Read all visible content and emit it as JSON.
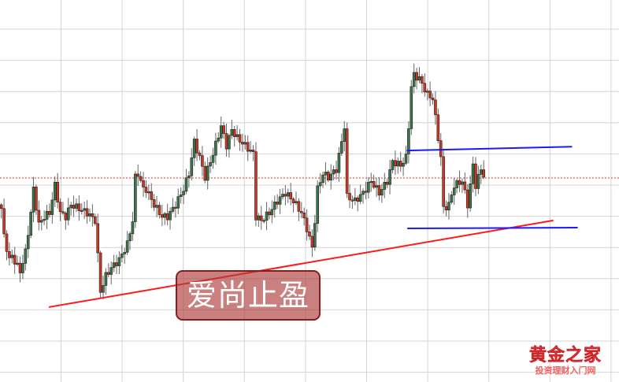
{
  "chart_data": {
    "type": "candlestick",
    "title": "",
    "xlabel": "",
    "ylabel": "",
    "xlim": [
      0,
      231
    ],
    "ylim": [
      0,
      100
    ],
    "grid": true,
    "colors": {
      "up": "#2f7a55",
      "down": "#c23b2b",
      "wick": "#666666",
      "outline": "#3a1a12",
      "grid": "#d4d4d4",
      "reference_line": "#e03030",
      "trendline": "#ff1a1a",
      "channel": "#1a1aff"
    },
    "close_path": [
      [
        0,
        45.4
      ],
      [
        1,
        38.1
      ],
      [
        3,
        32.0
      ],
      [
        4,
        33.0
      ],
      [
        7,
        28.9
      ],
      [
        9,
        34.0
      ],
      [
        11,
        44.3
      ],
      [
        12,
        50.5
      ],
      [
        14,
        41.2
      ],
      [
        16,
        43.3
      ],
      [
        18,
        44.3
      ],
      [
        20,
        51.5
      ],
      [
        22,
        44.3
      ],
      [
        24,
        43.3
      ],
      [
        26,
        46.4
      ],
      [
        29,
        45.4
      ],
      [
        32,
        44.3
      ],
      [
        35,
        42.3
      ],
      [
        37,
        23.7
      ],
      [
        39,
        27.8
      ],
      [
        41,
        29.9
      ],
      [
        44,
        32.0
      ],
      [
        47,
        36.1
      ],
      [
        49,
        42.3
      ],
      [
        50,
        53.6
      ],
      [
        51,
        54.6
      ],
      [
        53,
        50.5
      ],
      [
        54,
        50.5
      ],
      [
        57,
        46.4
      ],
      [
        60,
        43.3
      ],
      [
        62,
        43.3
      ],
      [
        65,
        46.4
      ],
      [
        68,
        50.5
      ],
      [
        70,
        54.6
      ],
      [
        72,
        62.9
      ],
      [
        74,
        58.8
      ],
      [
        76,
        53.6
      ],
      [
        77,
        55.7
      ],
      [
        79,
        59.8
      ],
      [
        82,
        67.0
      ],
      [
        84,
        61.9
      ],
      [
        86,
        66.0
      ],
      [
        88,
        63.9
      ],
      [
        91,
        61.9
      ],
      [
        94,
        59.8
      ],
      [
        95,
        43.3
      ],
      [
        97,
        42.3
      ],
      [
        100,
        44.3
      ],
      [
        103,
        47.4
      ],
      [
        106,
        49.5
      ],
      [
        109,
        47.4
      ],
      [
        112,
        44.3
      ],
      [
        114,
        40.2
      ],
      [
        116,
        35.1
      ],
      [
        117,
        42.3
      ],
      [
        118,
        50.5
      ],
      [
        120,
        54.6
      ],
      [
        122,
        53.6
      ],
      [
        125,
        55.7
      ],
      [
        127,
        62.9
      ],
      [
        128,
        67.0
      ],
      [
        129,
        48.5
      ],
      [
        132,
        47.4
      ],
      [
        135,
        49.5
      ],
      [
        138,
        52.6
      ],
      [
        141,
        49.5
      ],
      [
        144,
        52.6
      ],
      [
        146,
        57.7
      ],
      [
        149,
        56.7
      ],
      [
        151,
        58.8
      ],
      [
        152,
        67.0
      ],
      [
        153,
        77.3
      ],
      [
        154,
        80.4
      ],
      [
        156,
        79.4
      ],
      [
        159,
        75.3
      ],
      [
        161,
        74.2
      ],
      [
        162,
        69.1
      ],
      [
        164,
        58.8
      ],
      [
        165,
        45.4
      ],
      [
        167,
        46.4
      ],
      [
        169,
        51.5
      ],
      [
        172,
        52.6
      ],
      [
        174,
        46.4
      ],
      [
        176,
        56.7
      ],
      [
        177,
        51.5
      ],
      [
        179,
        55.7
      ],
      [
        180,
        54.2
      ]
    ],
    "reference_level": 53.4,
    "lines": [
      {
        "kind": "support-trendline",
        "from": [
          18.2,
          19.6
        ],
        "to": [
          206.5,
          42.3
        ]
      },
      {
        "kind": "resistance",
        "from": [
          151.8,
          60.6
        ],
        "to": [
          213.5,
          61.6
        ]
      },
      {
        "kind": "support",
        "from": [
          152,
          40.2
        ],
        "to": [
          215.6,
          40.4
        ]
      }
    ]
  },
  "watermark": {
    "text": "爱尚止盈"
  },
  "logo": {
    "title": "黄金之家",
    "subtitle": "投资理财入门网"
  }
}
